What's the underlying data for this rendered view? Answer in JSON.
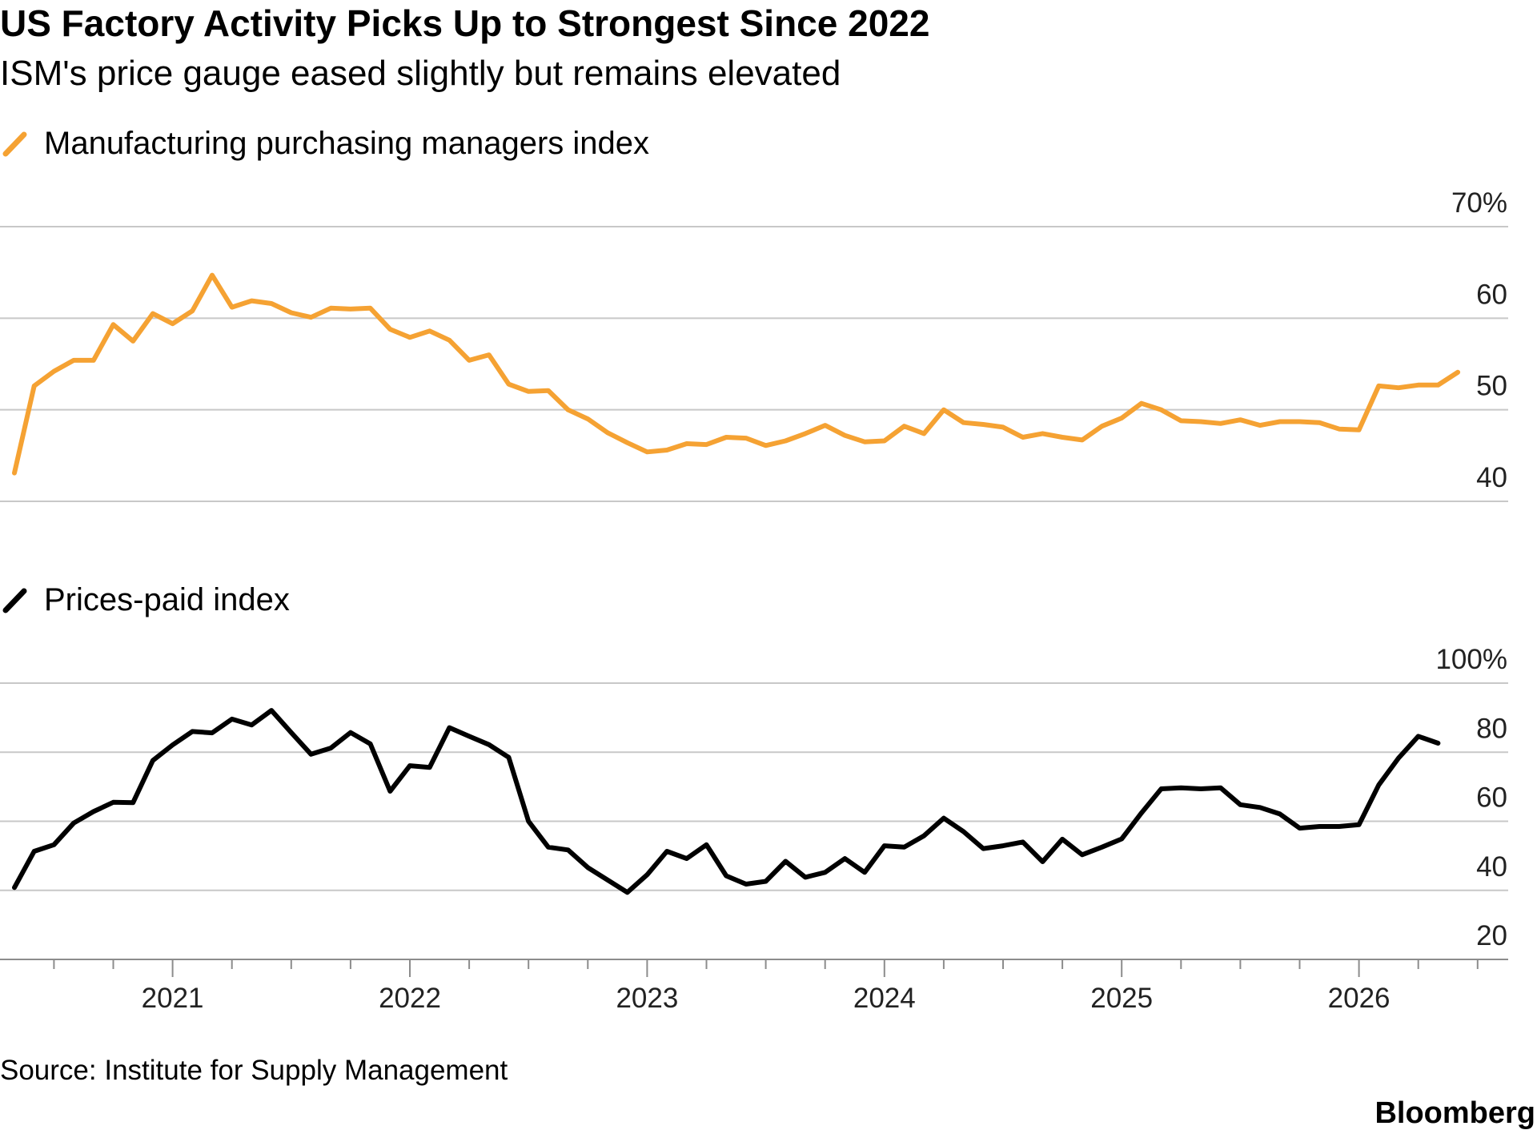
{
  "title": "US Factory Activity Picks Up to Strongest Since 2022",
  "subtitle": "ISM's price gauge eased slightly but remains elevated",
  "source": "Source: Institute for Supply Management",
  "brand": "Bloomberg",
  "colors": {
    "pmi": "#f5a233",
    "prices": "#000000",
    "grid": "#c8c8c8",
    "axis": "#8c8c8c"
  },
  "chart_data": [
    {
      "type": "line",
      "legend": "Manufacturing purchasing managers index",
      "ylim": [
        40,
        70
      ],
      "yticks": [
        70,
        60,
        50,
        40
      ],
      "ytick_labels": [
        "70%",
        "60",
        "50",
        "40"
      ],
      "start": "2020-05",
      "series": [
        {
          "name": "Manufacturing purchasing managers index",
          "values": [
            43.1,
            52.6,
            54.2,
            55.4,
            55.4,
            59.3,
            57.5,
            60.5,
            59.4,
            60.8,
            64.7,
            61.2,
            61.9,
            61.6,
            60.6,
            60.1,
            61.1,
            61.0,
            61.1,
            58.8,
            57.9,
            58.6,
            57.6,
            55.4,
            56.0,
            52.8,
            52.0,
            52.1,
            50.0,
            49.0,
            47.5,
            46.4,
            45.4,
            45.6,
            46.3,
            46.2,
            47.0,
            46.9,
            46.1,
            46.6,
            47.4,
            48.3,
            47.2,
            46.5,
            46.6,
            48.2,
            47.4,
            50.0,
            48.6,
            48.4,
            48.1,
            47.0,
            47.4,
            47.0,
            46.7,
            48.2,
            49.1,
            50.7,
            50.0,
            48.8,
            48.7,
            48.5,
            48.9,
            48.3,
            48.7,
            48.7,
            48.6,
            47.9,
            47.8,
            52.6,
            52.4,
            52.7,
            52.7,
            54.1
          ]
        }
      ]
    },
    {
      "type": "line",
      "legend": "Prices-paid index",
      "ylim": [
        20,
        100
      ],
      "yticks": [
        100,
        80,
        60,
        40,
        20
      ],
      "ytick_labels": [
        "100%",
        "80",
        "60",
        "40",
        "20"
      ],
      "start": "2020-05",
      "series": [
        {
          "name": "Prices-paid index",
          "values": [
            40.8,
            51.3,
            53.2,
            59.5,
            62.8,
            65.5,
            65.4,
            77.6,
            82.1,
            86.0,
            85.6,
            89.6,
            87.9,
            92.1,
            85.7,
            79.4,
            81.2,
            85.7,
            82.4,
            68.7,
            76.1,
            75.6,
            87.1,
            84.6,
            82.2,
            78.5,
            60.0,
            52.5,
            51.7,
            46.6,
            43.0,
            39.4,
            44.5,
            51.3,
            49.2,
            53.2,
            44.2,
            41.8,
            42.6,
            48.4,
            43.8,
            45.2,
            49.2,
            45.2,
            52.9,
            52.5,
            55.8,
            60.9,
            57.0,
            52.1,
            52.9,
            54.0,
            48.3,
            54.8,
            50.3,
            52.5,
            54.9,
            62.4,
            69.4,
            69.7,
            69.4,
            69.7,
            64.8,
            64.0,
            62.1,
            58.0,
            58.5,
            58.5,
            59.0,
            70.5,
            78.3,
            84.6,
            82.6
          ]
        }
      ]
    }
  ],
  "xaxis": {
    "year_labels": [
      "2021",
      "2022",
      "2023",
      "2024",
      "2025",
      "2026"
    ]
  }
}
